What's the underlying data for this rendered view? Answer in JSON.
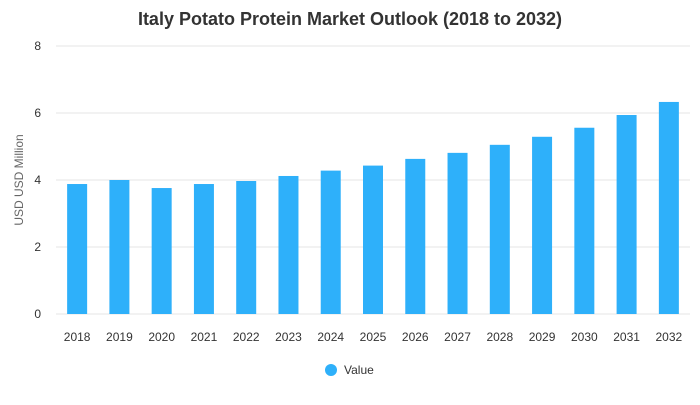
{
  "chart_data": {
    "type": "bar",
    "title": "Italy Potato Protein Market Outlook (2018 to 2032)",
    "xlabel": "",
    "ylabel": "USD USD Million",
    "ylim": [
      0,
      8
    ],
    "yticks": [
      "0",
      "2",
      "4",
      "6",
      "8"
    ],
    "categories": [
      "2018",
      "2019",
      "2020",
      "2021",
      "2022",
      "2023",
      "2024",
      "2025",
      "2026",
      "2027",
      "2028",
      "2029",
      "2030",
      "2031",
      "2032"
    ],
    "series": [
      {
        "name": "Value",
        "color": "#2eb0fa",
        "values": [
          3.88,
          4.0,
          3.76,
          3.88,
          3.97,
          4.12,
          4.28,
          4.43,
          4.63,
          4.81,
          5.05,
          5.29,
          5.56,
          5.94,
          6.33
        ]
      }
    ],
    "grid": true,
    "legend_position": "bottom-center"
  }
}
